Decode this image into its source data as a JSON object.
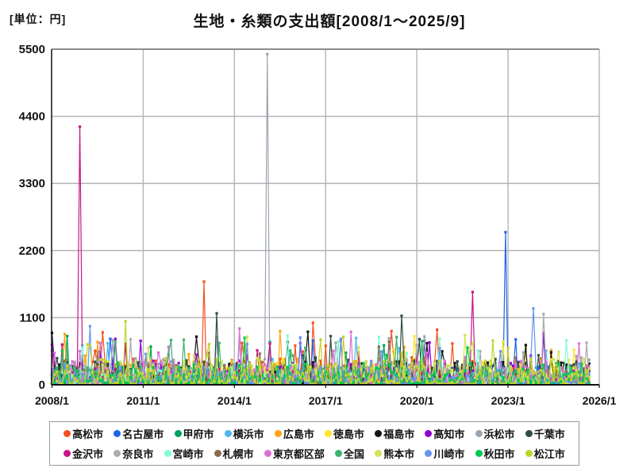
{
  "page": {
    "title": "生地・糸類の支出額[2008/1～2025/9]",
    "unit_label": "[単位：円]"
  },
  "chart_data": {
    "type": "line",
    "title": "生地・糸類の支出額[2008/1～2025/9]",
    "unit": "円",
    "x_range": {
      "start": "2008/1",
      "end": "2025/9"
    },
    "x_tick_labels": [
      "2008/1",
      "2011/1",
      "2014/1",
      "2017/1",
      "2020/1",
      "2023/1",
      "2026/1"
    ],
    "y_tick_labels": [
      "0",
      "1100",
      "2200",
      "3300",
      "4400",
      "5500"
    ],
    "ylim": [
      0,
      5500
    ],
    "grid": true,
    "legend_position": "bottom",
    "months_total": 213,
    "typical_monthly_range": [
      0,
      500
    ],
    "series": [
      {
        "name": "高松市",
        "color": "#F4511E"
      },
      {
        "name": "名古屋市",
        "color": "#1E63E9"
      },
      {
        "name": "甲府市",
        "color": "#00A05F"
      },
      {
        "name": "横浜市",
        "color": "#4DB8F0"
      },
      {
        "name": "広島市",
        "color": "#FFA413"
      },
      {
        "name": "徳島市",
        "color": "#FFE627"
      },
      {
        "name": "福島市",
        "color": "#141414"
      },
      {
        "name": "高知市",
        "color": "#9400D3"
      },
      {
        "name": "浜松市",
        "color": "#9AA5B1"
      },
      {
        "name": "千葉市",
        "color": "#2F4F41"
      },
      {
        "name": "金沢市",
        "color": "#C71585"
      },
      {
        "name": "奈良市",
        "color": "#ABABAB"
      },
      {
        "name": "宮崎市",
        "color": "#7FFFD4"
      },
      {
        "name": "札幌市",
        "color": "#8A6D4E"
      },
      {
        "name": "東京都区部",
        "color": "#DA70D6"
      },
      {
        "name": "全国",
        "color": "#3CB371"
      },
      {
        "name": "熊本市",
        "color": "#D4E157"
      },
      {
        "name": "川崎市",
        "color": "#6495ED"
      },
      {
        "name": "秋田市",
        "color": "#00C853"
      },
      {
        "name": "松江市",
        "color": "#BFD42A"
      }
    ],
    "notable_spikes": [
      {
        "series": "福島市",
        "month": "2008/1",
        "value": 850
      },
      {
        "series": "広島市",
        "month": "2008/6",
        "value": 830
      },
      {
        "series": "金沢市",
        "month": "2008/12",
        "value": 4230
      },
      {
        "series": "川崎市",
        "month": "2009/4",
        "value": 960
      },
      {
        "series": "松江市",
        "month": "2010/6",
        "value": 1040
      },
      {
        "series": "高松市",
        "month": "2013/1",
        "value": 1690
      },
      {
        "series": "千葉市",
        "month": "2013/6",
        "value": 1170
      },
      {
        "series": "浜松市",
        "month": "2015/2",
        "value": 5420
      },
      {
        "series": "広島市",
        "month": "2015/7",
        "value": 880
      },
      {
        "series": "千葉市",
        "month": "2019/7",
        "value": 1130
      },
      {
        "series": "金沢市",
        "month": "2021/11",
        "value": 1520
      },
      {
        "series": "名古屋市",
        "month": "2022/12",
        "value": 2500
      },
      {
        "series": "川崎市",
        "month": "2023/11",
        "value": 1250
      },
      {
        "series": "奈良市",
        "month": "2024/3",
        "value": 1160
      }
    ]
  }
}
